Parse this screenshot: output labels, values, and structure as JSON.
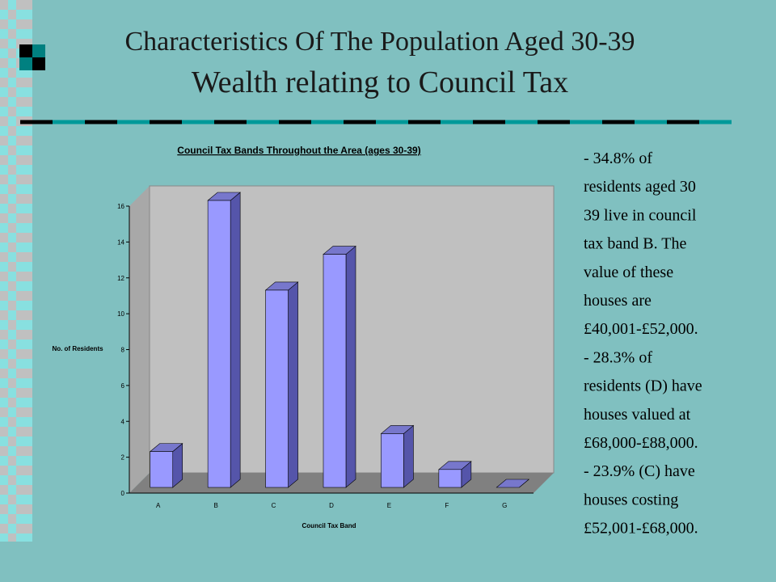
{
  "slide_title": [
    "Characteristics Of The Population Aged 30-39",
    "Wealth relating to Council Tax"
  ],
  "chart_data": {
    "type": "bar",
    "title": "Council Tax Bands Throughout the Area (ages 30-39)",
    "x_label": "Council Tax Band",
    "y_label": "No. of Residents",
    "categories": [
      "A",
      "B",
      "C",
      "D",
      "E",
      "F",
      "G"
    ],
    "values": [
      2,
      16,
      11,
      13,
      3,
      1,
      0
    ],
    "color": "#9999ff",
    "ylim": [
      0,
      16
    ],
    "yticks": [
      0,
      2,
      4,
      6,
      8,
      10,
      12,
      14,
      16
    ]
  },
  "notes": [
    "- 34.8% of",
    "residents aged 30",
    "39 live in council",
    "tax band B. The",
    "value of these",
    "houses are",
    "£40,001-£52,000.",
    "- 28.3% of",
    "residents (D) have",
    "houses valued at",
    "£68,000-£88,000.",
    "- 23.9% (C) have",
    "houses costing",
    "£52,001-£68,000."
  ]
}
